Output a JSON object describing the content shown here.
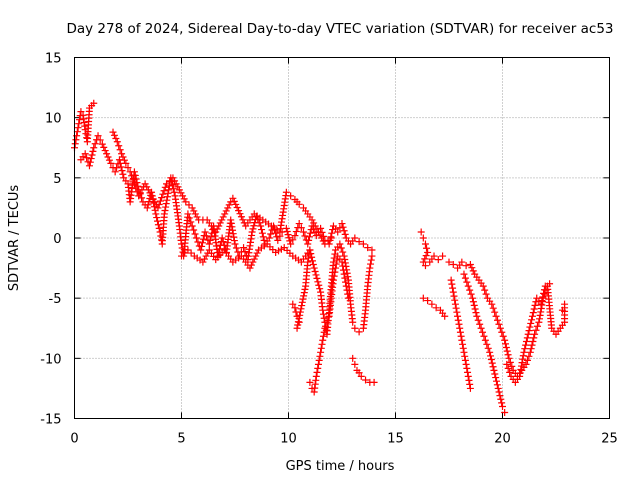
{
  "chart_data": {
    "type": "scatter",
    "title": "Day 278 of 2024, Sidereal Day-to-day VTEC variation (SDTVAR) for receiver ac53",
    "xlabel": "GPS time / hours",
    "ylabel": "SDTVAR / TECUs",
    "xlim": [
      0,
      25
    ],
    "ylim": [
      -15,
      15
    ],
    "xticks": [
      0,
      5,
      10,
      15,
      20,
      25
    ],
    "yticks": [
      -15,
      -10,
      -5,
      0,
      5,
      10,
      15
    ],
    "xtick_labels": [
      "0",
      "5",
      "10",
      "15",
      "20",
      "25"
    ],
    "ytick_labels": [
      "-15",
      "-10",
      "-5",
      "0",
      "5",
      "10",
      "15"
    ],
    "grid": true,
    "marker": "+",
    "color": "#ff0000",
    "series": [
      {
        "name": "main-trend",
        "points": [
          [
            0.0,
            7.5
          ],
          [
            0.1,
            8.5
          ],
          [
            0.2,
            9.5
          ],
          [
            0.3,
            10.5
          ],
          [
            0.4,
            10.2
          ],
          [
            0.5,
            9.0
          ],
          [
            0.6,
            8.0
          ],
          [
            0.7,
            10.8
          ],
          [
            0.8,
            11.0
          ],
          [
            0.9,
            11.2
          ],
          [
            0.3,
            6.5
          ],
          [
            0.5,
            7.0
          ],
          [
            0.7,
            6.0
          ],
          [
            0.9,
            7.5
          ],
          [
            1.1,
            8.5
          ],
          [
            1.3,
            7.8
          ],
          [
            1.5,
            7.0
          ],
          [
            1.7,
            6.2
          ],
          [
            1.9,
            5.5
          ],
          [
            2.1,
            6.5
          ],
          [
            2.3,
            5.0
          ],
          [
            2.5,
            4.5
          ],
          [
            2.6,
            3.0
          ],
          [
            2.8,
            5.5
          ],
          [
            3.0,
            4.0
          ],
          [
            3.2,
            3.0
          ],
          [
            3.4,
            2.5
          ],
          [
            3.6,
            3.8
          ],
          [
            3.8,
            2.0
          ],
          [
            4.0,
            0.5
          ],
          [
            4.1,
            -0.5
          ],
          [
            4.2,
            2.0
          ],
          [
            4.4,
            4.0
          ],
          [
            4.5,
            5.0
          ],
          [
            4.7,
            3.5
          ],
          [
            4.9,
            1.0
          ],
          [
            5.0,
            -0.5
          ],
          [
            5.1,
            -1.5
          ],
          [
            5.3,
            2.0
          ],
          [
            5.5,
            1.0
          ],
          [
            5.7,
            0.0
          ],
          [
            5.9,
            -1.0
          ],
          [
            6.1,
            0.5
          ],
          [
            6.3,
            -0.5
          ],
          [
            6.5,
            1.0
          ],
          [
            6.7,
            -1.5
          ],
          [
            6.9,
            0.0
          ],
          [
            7.1,
            -1.2
          ],
          [
            7.3,
            1.5
          ],
          [
            7.5,
            -0.5
          ],
          [
            7.7,
            -1.5
          ],
          [
            7.9,
            -0.8
          ],
          [
            8.1,
            -1.8
          ],
          [
            8.3,
            0.5
          ],
          [
            8.5,
            1.8
          ],
          [
            8.7,
            1.0
          ],
          [
            8.9,
            -0.5
          ],
          [
            9.1,
            0.0
          ],
          [
            9.3,
            1.0
          ],
          [
            9.5,
            -0.2
          ],
          [
            9.7,
            0.5
          ],
          [
            9.9,
            0.8
          ],
          [
            10.1,
            -0.5
          ],
          [
            10.3,
            0.2
          ],
          [
            10.5,
            1.2
          ],
          [
            10.7,
            0.5
          ],
          [
            10.9,
            -0.5
          ],
          [
            11.1,
            1.0
          ],
          [
            11.3,
            0.2
          ],
          [
            11.5,
            0.8
          ],
          [
            11.7,
            -0.2
          ],
          [
            11.9,
            -0.5
          ],
          [
            12.1,
            1.0
          ],
          [
            12.3,
            0.5
          ],
          [
            12.5,
            1.2
          ],
          [
            12.7,
            0.0
          ],
          [
            12.9,
            -0.5
          ],
          [
            13.1,
            0.0
          ],
          [
            13.3,
            -0.3
          ],
          [
            13.5,
            -0.5
          ],
          [
            13.7,
            -0.8
          ],
          [
            13.9,
            -1.0
          ]
        ]
      },
      {
        "name": "upper-band",
        "points": [
          [
            1.8,
            8.8
          ],
          [
            2.0,
            8.0
          ],
          [
            2.2,
            7.0
          ],
          [
            2.4,
            6.2
          ],
          [
            2.6,
            5.5
          ],
          [
            2.8,
            4.5
          ],
          [
            3.0,
            3.5
          ],
          [
            3.3,
            4.5
          ],
          [
            3.6,
            3.5
          ],
          [
            3.9,
            2.5
          ],
          [
            4.3,
            4.5
          ],
          [
            4.6,
            5.0
          ],
          [
            4.9,
            4.0
          ],
          [
            5.2,
            3.0
          ],
          [
            5.5,
            2.5
          ],
          [
            5.8,
            1.5
          ],
          [
            6.2,
            1.5
          ],
          [
            6.6,
            0.5
          ],
          [
            7.3,
            3.0
          ],
          [
            7.4,
            3.3
          ],
          [
            8.0,
            1.0
          ],
          [
            8.4,
            2.0
          ],
          [
            8.8,
            1.5
          ],
          [
            9.2,
            1.0
          ],
          [
            9.6,
            0.5
          ],
          [
            9.9,
            3.8
          ],
          [
            10.1,
            3.5
          ],
          [
            10.3,
            3.2
          ],
          [
            10.5,
            2.8
          ],
          [
            10.7,
            2.5
          ],
          [
            10.9,
            2.0
          ],
          [
            11.1,
            1.5
          ],
          [
            11.4,
            0.5
          ],
          [
            11.7,
            -0.5
          ],
          [
            12.0,
            0.0
          ]
        ]
      },
      {
        "name": "lower-band",
        "points": [
          [
            5.0,
            -1.5
          ],
          [
            5.3,
            -1.0
          ],
          [
            5.6,
            -1.5
          ],
          [
            6.0,
            -2.0
          ],
          [
            6.3,
            -1.0
          ],
          [
            6.6,
            -1.8
          ],
          [
            7.0,
            -1.0
          ],
          [
            7.4,
            -2.0
          ],
          [
            7.8,
            -1.5
          ],
          [
            8.2,
            -2.5
          ],
          [
            8.6,
            -1.0
          ],
          [
            9.0,
            -0.5
          ],
          [
            9.4,
            -1.2
          ],
          [
            9.8,
            -0.8
          ],
          [
            10.2,
            -1.5
          ],
          [
            10.6,
            -2.0
          ],
          [
            11.0,
            -1.0
          ],
          [
            11.2,
            -2.5
          ],
          [
            11.5,
            -4.5
          ],
          [
            11.6,
            -6.0
          ],
          [
            11.7,
            -7.0
          ],
          [
            11.8,
            -8.0
          ],
          [
            11.9,
            -6.0
          ],
          [
            12.0,
            -4.0
          ],
          [
            12.1,
            -2.0
          ],
          [
            12.2,
            -1.0
          ],
          [
            12.4,
            -0.5
          ],
          [
            12.6,
            -1.5
          ],
          [
            12.8,
            -3.5
          ],
          [
            12.9,
            -5.5
          ],
          [
            13.0,
            -7.0
          ],
          [
            13.1,
            -7.5
          ],
          [
            13.3,
            -7.8
          ],
          [
            13.5,
            -7.5
          ],
          [
            13.6,
            -6.0
          ],
          [
            13.7,
            -4.0
          ],
          [
            13.8,
            -2.5
          ],
          [
            13.9,
            -1.5
          ]
        ]
      },
      {
        "name": "dip-11",
        "points": [
          [
            10.2,
            -5.5
          ],
          [
            10.3,
            -5.8
          ],
          [
            10.4,
            -6.5
          ],
          [
            10.5,
            -7.0
          ],
          [
            10.4,
            -7.5
          ],
          [
            10.8,
            -4.0
          ],
          [
            10.9,
            -2.0
          ],
          [
            11.0,
            -1.0
          ],
          [
            11.0,
            -12.0
          ],
          [
            11.1,
            -12.5
          ],
          [
            11.2,
            -12.8
          ],
          [
            11.3,
            -11.5
          ],
          [
            11.4,
            -10.5
          ],
          [
            11.5,
            -9.5
          ],
          [
            11.6,
            -8.5
          ],
          [
            11.7,
            -7.5
          ],
          [
            11.8,
            -7.0
          ],
          [
            11.9,
            -6.5
          ],
          [
            12.0,
            -5.0
          ],
          [
            12.1,
            -3.5
          ],
          [
            12.2,
            -2.5
          ],
          [
            12.3,
            -1.5
          ],
          [
            12.5,
            -2.0
          ],
          [
            12.6,
            -3.0
          ],
          [
            12.7,
            -4.0
          ],
          [
            12.8,
            -5.0
          ]
        ]
      },
      {
        "name": "dip-13",
        "points": [
          [
            13.0,
            -10.0
          ],
          [
            13.1,
            -10.5
          ],
          [
            13.2,
            -11.0
          ],
          [
            13.3,
            -11.2
          ],
          [
            13.4,
            -11.5
          ],
          [
            13.6,
            -11.8
          ],
          [
            13.8,
            -12.0
          ],
          [
            14.0,
            -12.0
          ]
        ]
      },
      {
        "name": "second-segment",
        "points": [
          [
            16.2,
            0.5
          ],
          [
            16.3,
            0.0
          ],
          [
            16.4,
            -0.5
          ],
          [
            16.5,
            -1.2
          ],
          [
            16.3,
            -2.0
          ],
          [
            16.4,
            -2.3
          ],
          [
            16.6,
            -2.0
          ],
          [
            16.8,
            -1.5
          ],
          [
            17.0,
            -1.8
          ],
          [
            17.2,
            -1.5
          ],
          [
            16.3,
            -5.0
          ],
          [
            16.5,
            -5.2
          ],
          [
            16.7,
            -5.5
          ],
          [
            16.9,
            -5.8
          ],
          [
            17.1,
            -6.0
          ],
          [
            17.3,
            -6.5
          ],
          [
            17.5,
            -2.0
          ],
          [
            17.7,
            -2.2
          ],
          [
            17.9,
            -2.5
          ],
          [
            18.1,
            -2.0
          ],
          [
            18.3,
            -2.3
          ],
          [
            18.5,
            -2.2
          ],
          [
            18.7,
            -3.0
          ],
          [
            18.9,
            -3.5
          ],
          [
            19.1,
            -4.0
          ],
          [
            19.3,
            -5.0
          ],
          [
            19.5,
            -5.5
          ],
          [
            19.7,
            -6.5
          ],
          [
            19.9,
            -7.5
          ],
          [
            20.1,
            -8.5
          ],
          [
            20.3,
            -10.0
          ],
          [
            20.5,
            -11.0
          ],
          [
            20.7,
            -11.5
          ],
          [
            20.9,
            -11.0
          ],
          [
            21.1,
            -10.5
          ],
          [
            21.3,
            -9.5
          ],
          [
            21.5,
            -8.0
          ],
          [
            21.7,
            -7.0
          ],
          [
            21.9,
            -5.0
          ],
          [
            22.1,
            -4.0
          ],
          [
            22.3,
            -7.5
          ],
          [
            22.5,
            -8.0
          ],
          [
            22.7,
            -7.5
          ],
          [
            22.9,
            -7.0
          ],
          [
            22.9,
            -5.5
          ],
          [
            22.8,
            -6.0
          ]
        ]
      },
      {
        "name": "steep-drops",
        "points": [
          [
            17.6,
            -3.5
          ],
          [
            17.7,
            -4.5
          ],
          [
            17.8,
            -5.5
          ],
          [
            17.9,
            -6.5
          ],
          [
            18.0,
            -7.5
          ],
          [
            18.1,
            -8.5
          ],
          [
            18.2,
            -9.5
          ],
          [
            18.3,
            -10.5
          ],
          [
            18.4,
            -11.5
          ],
          [
            18.5,
            -12.5
          ],
          [
            18.2,
            -3.0
          ],
          [
            18.4,
            -4.0
          ],
          [
            18.6,
            -5.0
          ],
          [
            18.8,
            -6.5
          ],
          [
            19.0,
            -7.5
          ],
          [
            19.2,
            -8.5
          ],
          [
            19.4,
            -9.5
          ],
          [
            19.6,
            -11.0
          ],
          [
            19.8,
            -12.5
          ],
          [
            20.0,
            -14.0
          ],
          [
            20.1,
            -14.5
          ],
          [
            20.2,
            -10.5
          ],
          [
            20.4,
            -11.5
          ],
          [
            20.6,
            -12.0
          ],
          [
            20.8,
            -11.5
          ],
          [
            21.0,
            -9.5
          ],
          [
            21.2,
            -8.0
          ],
          [
            21.4,
            -6.5
          ],
          [
            21.6,
            -5.0
          ],
          [
            21.8,
            -5.5
          ],
          [
            22.0,
            -4.0
          ],
          [
            22.2,
            -3.8
          ]
        ]
      }
    ]
  }
}
